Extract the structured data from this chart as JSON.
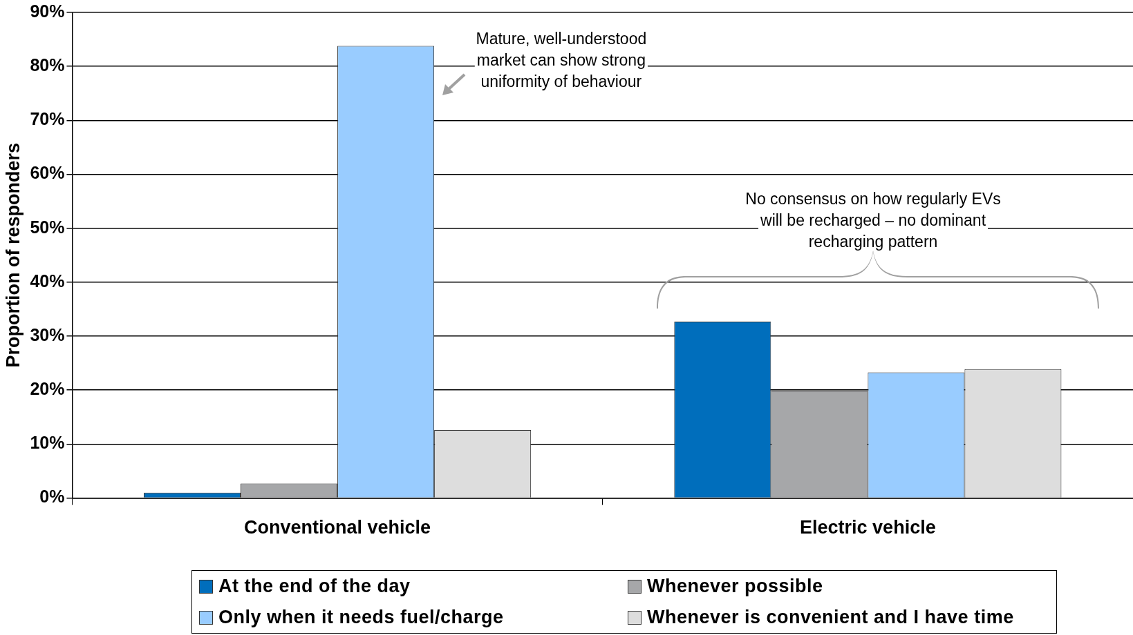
{
  "chart_data": {
    "type": "bar",
    "ylabel": "Proportion of responders",
    "categories": [
      "Conventional vehicle",
      "Electric vehicle"
    ],
    "series": [
      {
        "name": "At the end of the day",
        "color": "#006ebc",
        "values": [
          1,
          32.7
        ]
      },
      {
        "name": "Whenever possible",
        "color": "#a6a7a9",
        "values": [
          2.7,
          19.9
        ]
      },
      {
        "name": "Only when it needs fuel/charge",
        "color": "#99ccff",
        "values": [
          83.8,
          23.3
        ]
      },
      {
        "name": "Whenever is convenient and I have time",
        "color": "#dddddd",
        "values": [
          12.6,
          23.9
        ]
      }
    ],
    "ylim": [
      0,
      90
    ],
    "yticks": [
      {
        "value": 0,
        "label": "0%"
      },
      {
        "value": 10,
        "label": "10%"
      },
      {
        "value": 20,
        "label": "20%"
      },
      {
        "value": 30,
        "label": "30%"
      },
      {
        "value": 40,
        "label": "40%"
      },
      {
        "value": 50,
        "label": "50%"
      },
      {
        "value": 60,
        "label": "60%"
      },
      {
        "value": 70,
        "label": "70%"
      },
      {
        "value": 80,
        "label": "80%"
      },
      {
        "value": 90,
        "label": "90%"
      }
    ],
    "grid": "y",
    "legend": "bottom",
    "annotations": [
      "Mature, well-understood\nmarket can show strong\nuniformity of behaviour",
      "No consensus on how regularly EVs\nwill be recharged – no dominant\nrecharging pattern"
    ]
  }
}
